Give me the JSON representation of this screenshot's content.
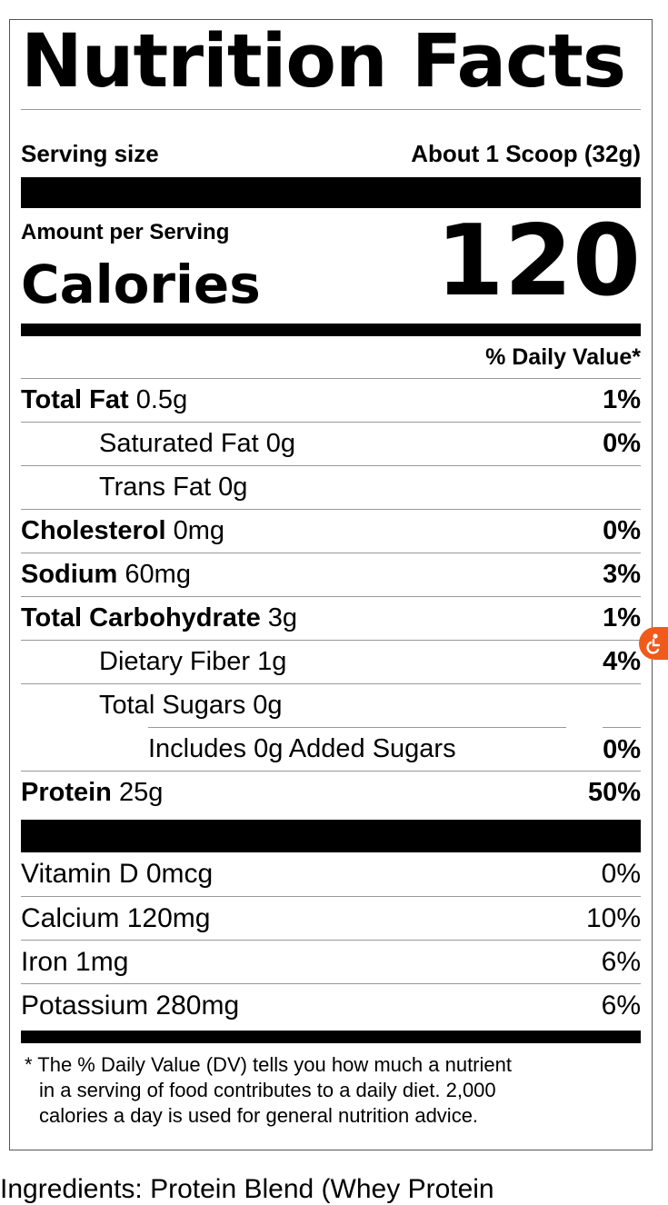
{
  "label": {
    "title": "Nutrition Facts",
    "serving_size_label": "Serving size",
    "serving_size_value": "About 1 Scoop (32g)",
    "amount_per_serving": "Amount per Serving",
    "calories_label": "Calories",
    "calories_value": "120",
    "daily_value_header": "% Daily Value*",
    "nutrients": [
      {
        "name": "Total Fat",
        "amount": "0.5g",
        "dv": "1%"
      },
      {
        "name": "Saturated Fat",
        "amount": "0g",
        "dv": "0%"
      },
      {
        "name": "Trans Fat",
        "amount": "0g",
        "dv": ""
      },
      {
        "name": "Cholesterol",
        "amount": "0mg",
        "dv": "0%"
      },
      {
        "name": "Sodium",
        "amount": "60mg",
        "dv": "3%"
      },
      {
        "name": "Total Carbohydrate",
        "amount": "3g",
        "dv": "1%"
      },
      {
        "name": "Dietary Fiber",
        "amount": "1g",
        "dv": "4%"
      },
      {
        "name": "Total Sugars",
        "amount": "0g",
        "dv": ""
      },
      {
        "name": "Includes 0g Added Sugars",
        "amount": "",
        "dv": "0%"
      },
      {
        "name": "Protein",
        "amount": "25g",
        "dv": "50%"
      }
    ],
    "vitamins": [
      {
        "name": "Vitamin D",
        "amount": "0mcg",
        "dv": "0%"
      },
      {
        "name": "Calcium",
        "amount": "120mg",
        "dv": "10%"
      },
      {
        "name": "Iron",
        "amount": "1mg",
        "dv": "6%"
      },
      {
        "name": "Potassium",
        "amount": "280mg",
        "dv": "6%"
      }
    ],
    "footnote_line1": "* The % Daily Value (DV) tells you how much a nutrient",
    "footnote_line2": "in a serving of food contributes to a daily diet. 2,000",
    "footnote_line3": "calories a  day is used for general nutrition advice."
  },
  "ingredients_partial": "Ingredients: Protein Blend (Whey Protein",
  "accessibility_badge_icon": "accessibility-icon",
  "accent_color": "#f05a1a"
}
